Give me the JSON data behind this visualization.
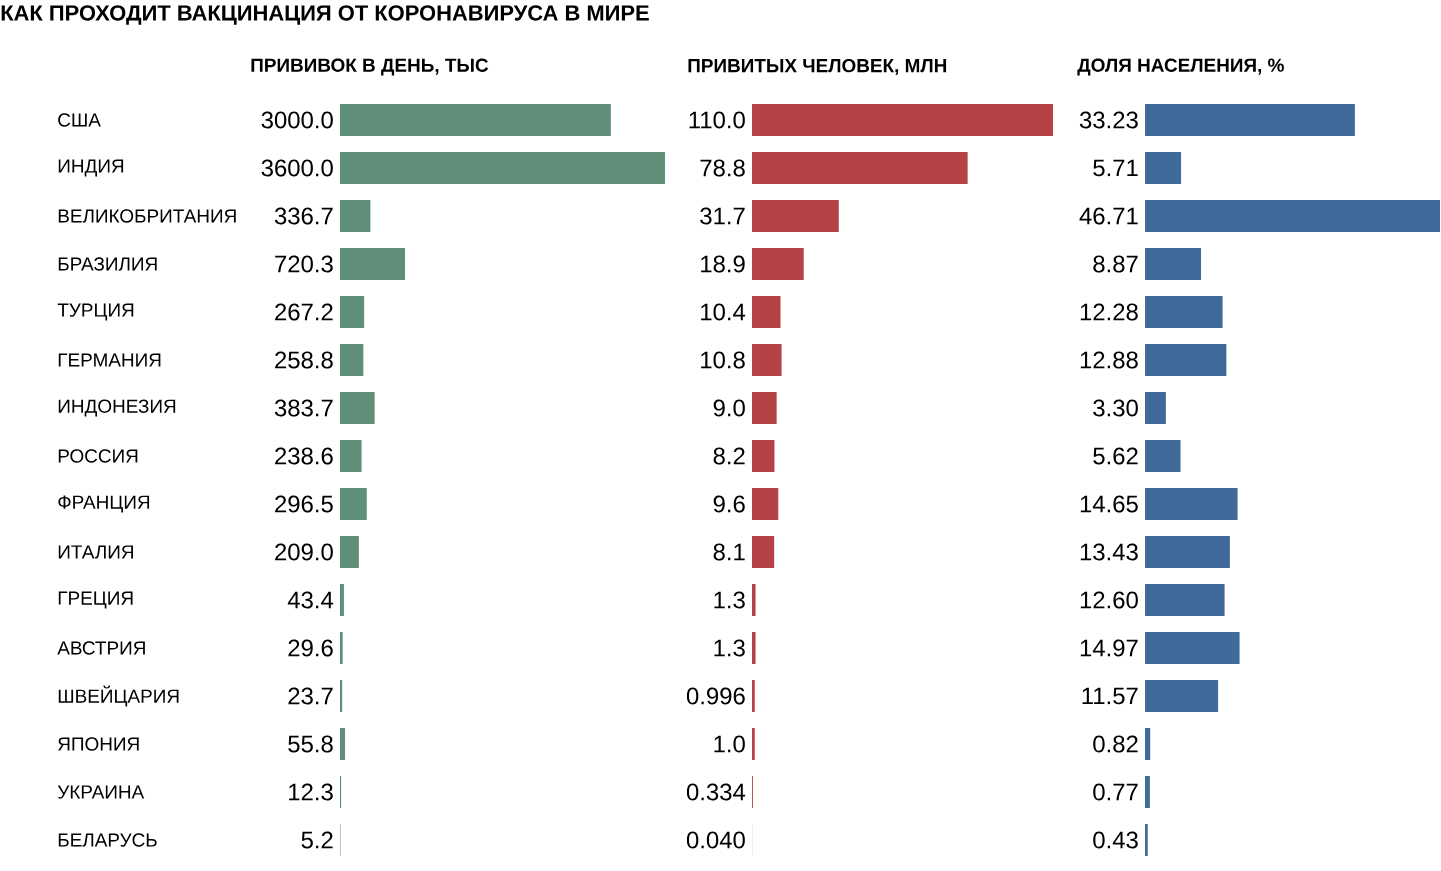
{
  "chart_data": [
    {
      "type": "bar",
      "orientation": "horizontal",
      "title": "КАК ПРОХОДИТ ВАКЦИНАЦИЯ ОТ КОРОНАВИРУСА В МИРЕ",
      "subtitle": "ПРИВИВОК В ДЕНЬ, ТЫС",
      "categories": [
        "США",
        "ИНДИЯ",
        "ВЕЛИКОБРИТАНИЯ",
        "БРАЗИЛИЯ",
        "ТУРЦИЯ",
        "ГЕРМАНИЯ",
        "ИНДОНЕЗИЯ",
        "РОССИЯ",
        "ФРАНЦИЯ",
        "ИТАЛИЯ",
        "ГРЕЦИЯ",
        "АВСТРИЯ",
        "ШВЕЙЦАРИЯ",
        "ЯПОНИЯ",
        "УКРАИНА",
        "БЕЛАРУСЬ"
      ],
      "values": [
        3000.0,
        3600.0,
        336.7,
        720.3,
        267.2,
        258.8,
        383.7,
        238.6,
        296.5,
        209.0,
        43.4,
        29.6,
        23.7,
        55.8,
        12.3,
        5.2
      ],
      "value_labels": [
        "3000.0",
        "3600.0",
        "336.7",
        "720.3",
        "267.2",
        "258.8",
        "383.7",
        "238.6",
        "296.5",
        "209.0",
        "43.4",
        "29.6",
        "23.7",
        "55.8",
        "12.3",
        "5.2"
      ],
      "color": "#5f8f78",
      "xlim": [
        0,
        3600
      ],
      "tick_labels": "y"
    },
    {
      "type": "bar",
      "orientation": "horizontal",
      "title": "ПРИВИТЫХ ЧЕЛОВЕК, МЛН",
      "categories": [
        null,
        null,
        null,
        null,
        null,
        null,
        null,
        null,
        null,
        null,
        null,
        null,
        null,
        null,
        null,
        null
      ],
      "values": [
        110.0,
        78.8,
        31.7,
        18.9,
        10.4,
        10.8,
        9.0,
        8.2,
        9.6,
        8.1,
        1.3,
        1.3,
        0.996,
        1.0,
        0.334,
        0.04
      ],
      "value_labels": [
        "110.0",
        "78.8",
        "31.7",
        "18.9",
        "10.4",
        "10.8",
        "9.0",
        "8.2",
        "9.6",
        "8.1",
        "1.3",
        "1.3",
        "0.996",
        "1.0",
        "0.334",
        "0.040"
      ],
      "color": "#b54244",
      "xlim": [
        0,
        110
      ],
      "tick_labels": false
    },
    {
      "type": "bar",
      "orientation": "horizontal",
      "title": "ДОЛЯ НАСЕЛЕНИЯ, %",
      "categories": [
        null,
        null,
        null,
        null,
        null,
        null,
        null,
        null,
        null,
        null,
        null,
        null,
        null,
        null,
        null,
        null
      ],
      "values": [
        33.23,
        5.71,
        46.71,
        8.87,
        12.28,
        12.88,
        3.3,
        5.62,
        14.65,
        13.43,
        12.6,
        14.97,
        11.57,
        0.82,
        0.77,
        0.43
      ],
      "value_labels": [
        "33.23",
        "5.71",
        "46.71",
        "8.87",
        "12.28",
        "12.88",
        "3.30",
        "5.62",
        "14.65",
        "13.43",
        "12.60",
        "14.97",
        "11.57",
        "0.82",
        "0.77",
        "0.43"
      ],
      "color": "#3f6a9a",
      "xlim": [
        0,
        46.71
      ],
      "tick_labels": false
    }
  ]
}
